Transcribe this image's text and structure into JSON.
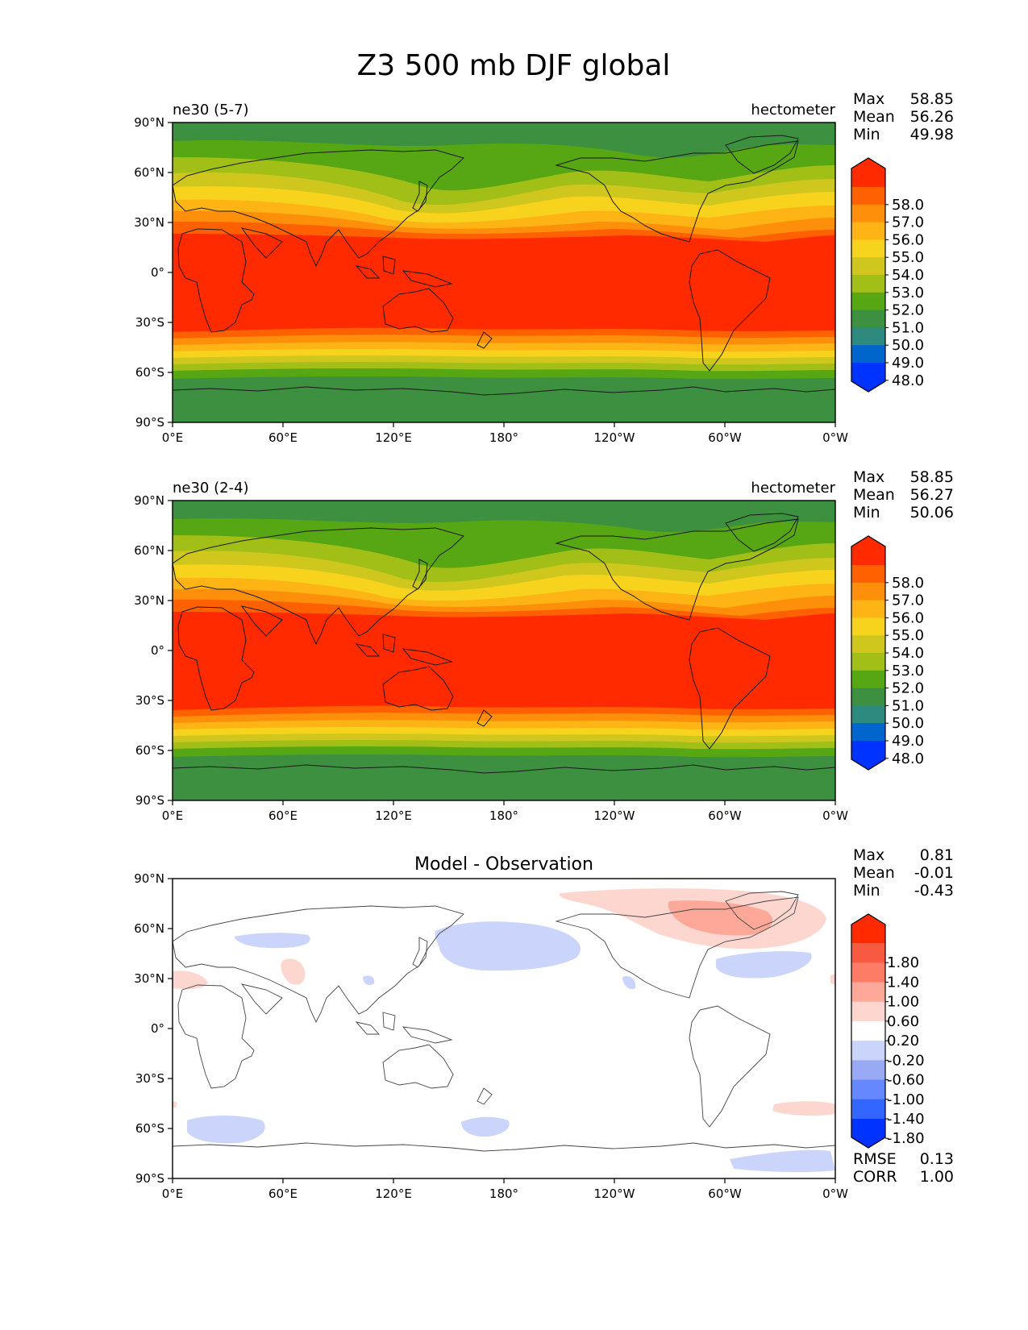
{
  "title": "Z3 500 mb DJF global",
  "colors": {
    "abs_levels": [
      "#0033ff",
      "#0066cc",
      "#2e8a7e",
      "#3c9040",
      "#57a614",
      "#a2bf17",
      "#d0c71e",
      "#f7d31e",
      "#fdb414",
      "#fe8f0a",
      "#ff6000",
      "#ff2a00"
    ],
    "diff_levels": [
      "#0033ff",
      "#3366ff",
      "#6688ff",
      "#99aaf5",
      "#cbd4fa",
      "#ffffff",
      "#fdd6d0",
      "#fda898",
      "#fd7c66",
      "#f75a40",
      "#ff2a00"
    ]
  },
  "x_ticks": [
    "0°E",
    "60°E",
    "120°E",
    "180°",
    "120°W",
    "60°W",
    "0°W"
  ],
  "y_ticks": [
    "90°N",
    "60°N",
    "30°N",
    "0°",
    "30°S",
    "60°S",
    "90°S"
  ],
  "panels": [
    {
      "left_title": "ne30 (5-7)",
      "right_title": "hectometer",
      "stats": [
        {
          "label": "Max",
          "value": "58.85"
        },
        {
          "label": "Mean",
          "value": "56.26"
        },
        {
          "label": "Min",
          "value": "49.98"
        }
      ],
      "colorbar_labels": [
        "58.0",
        "57.0",
        "56.0",
        "55.0",
        "54.0",
        "53.0",
        "52.0",
        "51.0",
        "50.0",
        "49.0",
        "48.0"
      ]
    },
    {
      "left_title": "ne30 (2-4)",
      "right_title": "hectometer",
      "stats": [
        {
          "label": "Max",
          "value": "58.85"
        },
        {
          "label": "Mean",
          "value": "56.27"
        },
        {
          "label": "Min",
          "value": "50.06"
        }
      ],
      "colorbar_labels": [
        "58.0",
        "57.0",
        "56.0",
        "55.0",
        "54.0",
        "53.0",
        "52.0",
        "51.0",
        "50.0",
        "49.0",
        "48.0"
      ]
    },
    {
      "center_title": "Model - Observation",
      "stats": [
        {
          "label": "Max",
          "value": "0.81"
        },
        {
          "label": "Mean",
          "value": "-0.01"
        },
        {
          "label": "Min",
          "value": "-0.43"
        }
      ],
      "colorbar_labels": [
        "1.80",
        "1.40",
        "1.00",
        "0.60",
        "0.20",
        "-0.20",
        "-0.60",
        "-1.00",
        "-1.40",
        "-1.80"
      ],
      "bottom_stats": [
        {
          "label": "RMSE",
          "value": "0.13"
        },
        {
          "label": "CORR",
          "value": "1.00"
        }
      ]
    }
  ]
}
